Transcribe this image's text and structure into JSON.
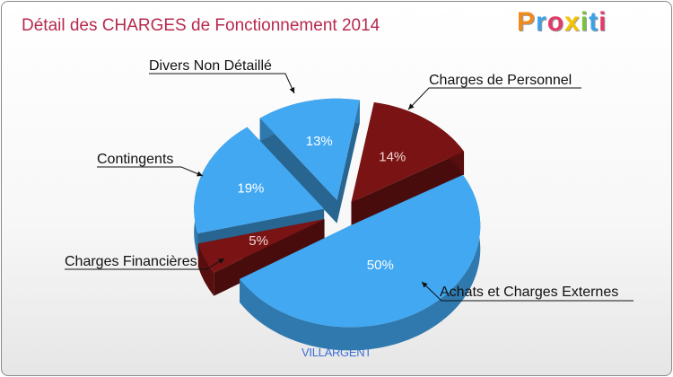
{
  "header": {
    "title": "Détail des CHARGES de Fonctionnement 2014"
  },
  "logo": {
    "text": "Proxiti",
    "letters": [
      "P",
      "r",
      "o",
      "x",
      "i",
      "t",
      "i"
    ],
    "colors": [
      "#f08a1c",
      "#3aa3e8",
      "#e23b6a",
      "#f5c400",
      "#7ac143",
      "#3aa3e8",
      "#e23b6a"
    ]
  },
  "footer": {
    "commune": "VILLARGENT"
  },
  "chart_data": {
    "type": "pie",
    "title": "Détail des CHARGES de Fonctionnement 2014",
    "subtitle": "VILLARGENT",
    "slices": [
      {
        "label": "Charges de Personnel",
        "value": 14,
        "pct_label": "14%",
        "color": "#7a1414"
      },
      {
        "label": "Achats et Charges Externes",
        "value": 50,
        "pct_label": "50%",
        "color": "#42a8f2"
      },
      {
        "label": "Charges Financières",
        "value": 5,
        "pct_label": "5%",
        "color": "#7a1414"
      },
      {
        "label": "Contingents",
        "value": 19,
        "pct_label": "19%",
        "color": "#42a8f2"
      },
      {
        "label": "Divers Non Détaillé",
        "value": 13,
        "pct_label": "13%",
        "color": "#42a8f2"
      }
    ]
  }
}
